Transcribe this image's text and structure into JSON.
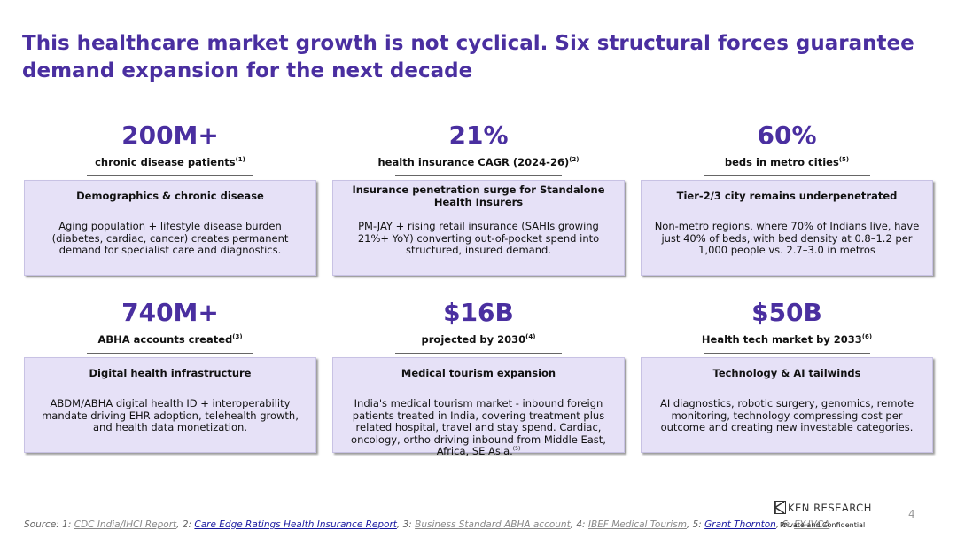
{
  "title": "This healthcare market growth is not cyclical. Six structural forces guarantee demand expansion for the next decade",
  "cards": [
    {
      "stat": "200M+",
      "sub": "chronic disease patients",
      "sub_ref": "(1)",
      "box_title": "Demographics & chronic disease",
      "box_body": "Aging population + lifestyle disease burden (diabetes, cardiac, cancer) creates permanent demand for specialist care and diagnostics.",
      "body_ref": ""
    },
    {
      "stat": "21%",
      "sub": "health insurance CAGR (2024-26)",
      "sub_ref": "(2)",
      "box_title": "Insurance penetration surge for Standalone Health Insurers",
      "box_body": "PM-JAY + rising retail insurance (SAHIs growing 21%+ YoY) converting out-of-pocket spend into structured, insured demand.",
      "body_ref": ""
    },
    {
      "stat": "60%",
      "sub": "beds in metro cities",
      "sub_ref": "(5)",
      "box_title": "Tier-2/3 city remains underpenetrated",
      "box_body": "Non-metro regions, where 70% of Indians live, have just 40% of beds, with bed density at 0.8–1.2 per 1,000 people vs. 2.7–3.0 in metros",
      "body_ref": ""
    },
    {
      "stat": "740M+",
      "sub": "ABHA accounts created",
      "sub_ref": "(3)",
      "box_title": "Digital health infrastructure",
      "box_body": "ABDM/ABHA digital health ID + interoperability mandate driving EHR adoption, telehealth growth, and health data monetization.",
      "body_ref": ""
    },
    {
      "stat": "$16B",
      "sub": "projected by 2030",
      "sub_ref": "(4)",
      "box_title": "Medical tourism expansion",
      "box_body": "India's medical tourism market - inbound foreign patients treated in India, covering treatment plus related hospital, travel and stay spend. Cardiac, oncology, ortho driving inbound from Middle East, Africa, SE Asia.",
      "body_ref": "(5)"
    },
    {
      "stat": "$50B",
      "sub": "Health tech market by 2033",
      "sub_ref": "(6)",
      "box_title": "Technology & AI tailwinds",
      "box_body": "AI diagnostics, robotic surgery, genomics, remote monitoring, technology compressing cost per outcome and creating new investable categories.",
      "body_ref": ""
    }
  ],
  "footer": {
    "prefix": "Source: 1: ",
    "s1": "CDC India/IHCI Report",
    "sep2": ", 2: ",
    "s2": "Care Edge Ratings Health Insurance Report",
    "sep3": ", 3: ",
    "s3": "Business Standard ABHA account",
    "sep4": ", 4: ",
    "s4": "IBEF Medical Tourism",
    "sep5": ", 5: ",
    "s5": "Grant Thornton",
    "sep6": ", 6: ",
    "s6": "EY-IVCA"
  },
  "logo_text": "KEN RESEARCH",
  "confidential": "Private and Confidential",
  "page_number": "4",
  "colors": {
    "accent": "#4a2fa0",
    "box_bg": "#e6e1f7"
  }
}
